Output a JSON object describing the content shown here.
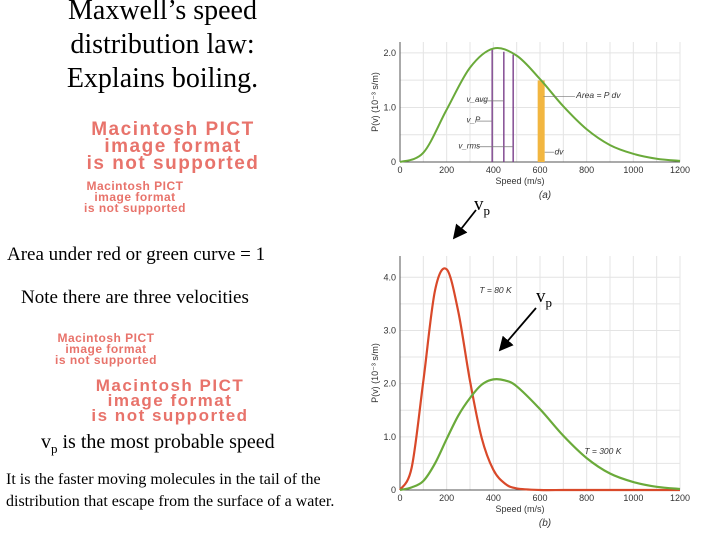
{
  "slide": {
    "title_lines": [
      "Maxwell’s speed",
      "distribution law:",
      "Explains boiling."
    ],
    "pict_placeholder": [
      "Macintosh PICT",
      "image format",
      "is not supported"
    ],
    "area_note": "Area under red or green curve = 1",
    "velocities_note": "Note there are three velocities",
    "vp_symbol": "v",
    "vp_subscript": "p",
    "vp_note_rest": "is the most probable speed",
    "tail_note": "It is the faster moving molecules in the tail of the distribution that escape from the surface of a water."
  },
  "chart_data": [
    {
      "type": "line",
      "label": "(a)",
      "x": [
        0,
        100,
        200,
        300,
        400,
        500,
        600,
        700,
        800,
        900,
        1000,
        1100,
        1200
      ],
      "series": [
        {
          "name": "T = 300 K",
          "color": "#6aaa3a",
          "values": [
            0,
            0.17,
            0.96,
            1.73,
            2.08,
            1.95,
            1.52,
            1.02,
            0.6,
            0.31,
            0.15,
            0.06,
            0.02
          ]
        }
      ],
      "xlabel": "Speed (m/s)",
      "ylabel": "P(v) (10⁻³ s/m)",
      "xticks": [
        "0",
        "200",
        "400",
        "600",
        "800",
        "1000",
        "1200"
      ],
      "yticks": [
        "0",
        "1.0",
        "2.0"
      ],
      "xlim": [
        0,
        1200
      ],
      "ylim": [
        0,
        2.2
      ],
      "markers": {
        "v_p": 395,
        "v_avg": 445,
        "v_rms": 485
      },
      "marker_labels": {
        "v_avg": "v_avg",
        "v_p": "v_P",
        "v_rms": "v_rms"
      },
      "band": {
        "from": 590,
        "to": 620,
        "color": "#f2b640"
      },
      "annotations": {
        "area": "Area = P dv",
        "dv": "dv"
      }
    },
    {
      "type": "line",
      "label": "(b)",
      "x": [
        0,
        50,
        100,
        150,
        200,
        250,
        300,
        350,
        400,
        450,
        500,
        600,
        700,
        800,
        900,
        1000,
        1100,
        1200
      ],
      "series": [
        {
          "name": "T = 80 K",
          "color": "#d9492a",
          "values": [
            0,
            0.42,
            2.05,
            3.75,
            4.15,
            3.35,
            2.05,
            0.98,
            0.38,
            0.12,
            0.03,
            0,
            0,
            0,
            0,
            0,
            0,
            0
          ]
        },
        {
          "name": "T = 300 K",
          "color": "#6aaa3a",
          "values": [
            0,
            0.05,
            0.17,
            0.5,
            0.96,
            1.4,
            1.73,
            1.98,
            2.08,
            2.06,
            1.95,
            1.52,
            1.02,
            0.6,
            0.31,
            0.15,
            0.06,
            0.02
          ]
        }
      ],
      "xlabel": "Speed (m/s)",
      "ylabel": "P(v) (10⁻³ s/m)",
      "xticks": [
        "0",
        "200",
        "400",
        "600",
        "800",
        "1000",
        "1200"
      ],
      "yticks": [
        "0",
        "1.0",
        "2.0",
        "3.0",
        "4.0"
      ],
      "xlim": [
        0,
        1200
      ],
      "ylim": [
        0,
        4.4
      ],
      "series_labels": {
        "cold": "T = 80 K",
        "warm": "T = 300 K"
      }
    }
  ],
  "arrows": {
    "label_symbol": "v",
    "label_subscript": "p"
  }
}
